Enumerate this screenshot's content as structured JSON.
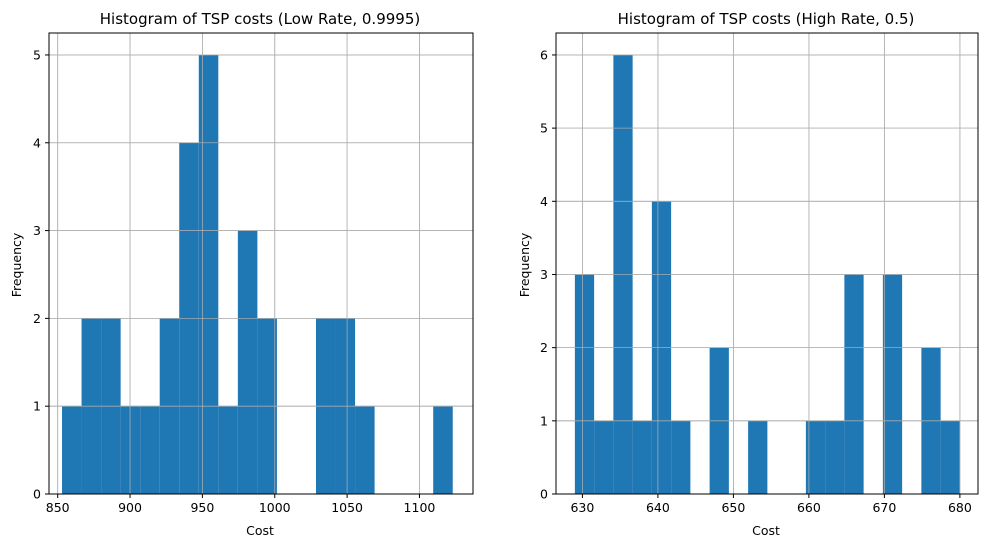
{
  "chart_data": [
    {
      "type": "bar",
      "title": "Histogram of TSP costs (Low Rate, 0.9995)",
      "xlabel": "Cost",
      "ylabel": "Frequency",
      "xlim": [
        844,
        1137
      ],
      "ylim": [
        0,
        5.25
      ],
      "xticks": [
        850,
        900,
        950,
        1000,
        1050,
        1100
      ],
      "yticks": [
        0,
        1,
        2,
        3,
        4,
        5
      ],
      "grid": true,
      "color": "#1f77b4",
      "bins": [
        {
          "x0": 853.0,
          "x1": 866.5,
          "value": 1
        },
        {
          "x0": 866.5,
          "x1": 880.0,
          "value": 2
        },
        {
          "x0": 880.0,
          "x1": 893.5,
          "value": 2
        },
        {
          "x0": 893.5,
          "x1": 907.0,
          "value": 1
        },
        {
          "x0": 907.0,
          "x1": 920.5,
          "value": 1
        },
        {
          "x0": 920.5,
          "x1": 934.0,
          "value": 2
        },
        {
          "x0": 934.0,
          "x1": 947.5,
          "value": 4
        },
        {
          "x0": 947.5,
          "x1": 961.0,
          "value": 5
        },
        {
          "x0": 961.0,
          "x1": 974.5,
          "value": 1
        },
        {
          "x0": 974.5,
          "x1": 988.0,
          "value": 3
        },
        {
          "x0": 988.0,
          "x1": 1001.5,
          "value": 2
        },
        {
          "x0": 1001.5,
          "x1": 1015.0,
          "value": 0
        },
        {
          "x0": 1015.0,
          "x1": 1028.5,
          "value": 0
        },
        {
          "x0": 1028.5,
          "x1": 1042.0,
          "value": 2
        },
        {
          "x0": 1042.0,
          "x1": 1055.5,
          "value": 2
        },
        {
          "x0": 1055.5,
          "x1": 1069.0,
          "value": 1
        },
        {
          "x0": 1069.0,
          "x1": 1082.5,
          "value": 0
        },
        {
          "x0": 1082.5,
          "x1": 1096.0,
          "value": 0
        },
        {
          "x0": 1096.0,
          "x1": 1109.5,
          "value": 0
        },
        {
          "x0": 1109.5,
          "x1": 1123.0,
          "value": 1
        }
      ]
    },
    {
      "type": "bar",
      "title": "Histogram of TSP costs (High Rate, 0.5)",
      "xlabel": "Cost",
      "ylabel": "Frequency",
      "xlim": [
        626.5,
        682.4
      ],
      "ylim": [
        0,
        6.3
      ],
      "xticks": [
        630,
        640,
        650,
        660,
        670,
        680
      ],
      "yticks": [
        0,
        1,
        2,
        3,
        4,
        5,
        6
      ],
      "grid": true,
      "color": "#1f77b4",
      "bins": [
        {
          "x0": 629.0,
          "x1": 631.55,
          "value": 3
        },
        {
          "x0": 631.55,
          "x1": 634.1,
          "value": 1
        },
        {
          "x0": 634.1,
          "x1": 636.65,
          "value": 6
        },
        {
          "x0": 636.65,
          "x1": 639.2,
          "value": 1
        },
        {
          "x0": 639.2,
          "x1": 641.75,
          "value": 4
        },
        {
          "x0": 641.75,
          "x1": 644.3,
          "value": 1
        },
        {
          "x0": 644.3,
          "x1": 646.85,
          "value": 0
        },
        {
          "x0": 646.85,
          "x1": 649.4,
          "value": 2
        },
        {
          "x0": 649.4,
          "x1": 651.95,
          "value": 0
        },
        {
          "x0": 651.95,
          "x1": 654.5,
          "value": 1
        },
        {
          "x0": 654.5,
          "x1": 657.05,
          "value": 0
        },
        {
          "x0": 657.05,
          "x1": 659.6,
          "value": 0
        },
        {
          "x0": 659.6,
          "x1": 662.15,
          "value": 1
        },
        {
          "x0": 662.15,
          "x1": 664.7,
          "value": 1
        },
        {
          "x0": 664.7,
          "x1": 667.25,
          "value": 3
        },
        {
          "x0": 667.25,
          "x1": 669.8,
          "value": 0
        },
        {
          "x0": 669.8,
          "x1": 672.35,
          "value": 3
        },
        {
          "x0": 672.35,
          "x1": 674.9,
          "value": 0
        },
        {
          "x0": 674.9,
          "x1": 677.45,
          "value": 2
        },
        {
          "x0": 677.45,
          "x1": 680.0,
          "value": 1
        }
      ]
    }
  ]
}
